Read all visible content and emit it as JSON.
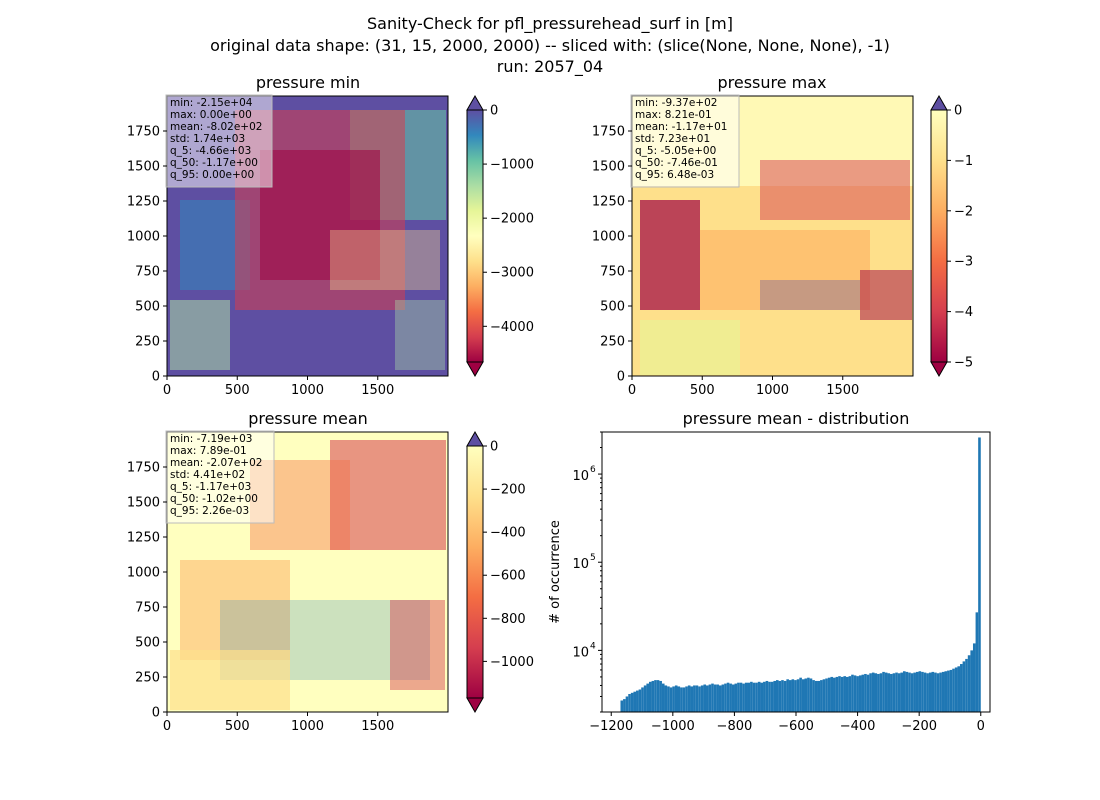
{
  "figure": {
    "title_lines": [
      "Sanity-Check for pfl_pressurehead_surf in [m]",
      "original data shape: (31, 15, 2000, 2000) -- sliced with: (slice(None, None, None), -1)",
      "run: 2057_04"
    ]
  },
  "chart_data": [
    {
      "type": "heatmap",
      "title": "pressure min",
      "colormap": "Spectral",
      "extend_top_color": "#5e4fa2",
      "extend_bottom_color": "#9e0142",
      "xlim": [
        0,
        2000
      ],
      "ylim": [
        0,
        2000
      ],
      "xticks": [
        0,
        500,
        1000,
        1500
      ],
      "yticks": [
        0,
        250,
        500,
        750,
        1000,
        1250,
        1500,
        1750
      ],
      "colorbar": {
        "vmin": -4660,
        "vmax": 0,
        "ticks": [
          0,
          -1000,
          -2000,
          -3000,
          -4000
        ]
      },
      "stats": [
        "min: -2.15e+04",
        "max: 0.00e+00",
        "mean: -8.02e+02",
        "std: 1.74e+03",
        "q_5: -4.66e+03",
        "q_50: -1.17e+00",
        "q_95: 0.00e+00"
      ]
    },
    {
      "type": "heatmap",
      "title": "pressure max",
      "colormap": "Spectral",
      "extend_top_color": "#5e4fa2",
      "extend_bottom_color": "#9e0142",
      "xlim": [
        0,
        2000
      ],
      "ylim": [
        0,
        2000
      ],
      "xticks": [
        0,
        500,
        1000,
        1500
      ],
      "yticks": [
        0,
        250,
        500,
        750,
        1000,
        1250,
        1500,
        1750
      ],
      "colorbar": {
        "vmin": -5,
        "vmax": 0,
        "ticks": [
          0,
          -1,
          -2,
          -3,
          -4,
          -5
        ]
      },
      "stats": [
        "min: -9.37e+02",
        "max: 8.21e-01",
        "mean: -1.17e+01",
        "std: 7.23e+01",
        "q_5: -5.05e+00",
        "q_50: -7.46e-01",
        "q_95: 6.48e-03"
      ]
    },
    {
      "type": "heatmap",
      "title": "pressure mean",
      "colormap": "Spectral",
      "extend_top_color": "#5e4fa2",
      "extend_bottom_color": "#9e0142",
      "xlim": [
        0,
        2000
      ],
      "ylim": [
        0,
        2000
      ],
      "xticks": [
        0,
        500,
        1000,
        1500
      ],
      "yticks": [
        0,
        250,
        500,
        750,
        1000,
        1250,
        1500,
        1750
      ],
      "colorbar": {
        "vmin": -1170,
        "vmax": 0,
        "ticks": [
          0,
          -200,
          -400,
          -600,
          -800,
          -1000
        ]
      },
      "stats": [
        "min: -7.19e+03",
        "max: 7.89e-01",
        "mean: -2.07e+02",
        "std: 4.41e+02",
        "q_5: -1.17e+03",
        "q_50: -1.02e+00",
        "q_95: 2.26e-03"
      ]
    },
    {
      "type": "bar",
      "title": "pressure mean - distribution",
      "ylabel": "# of occurrence",
      "xlabel": "",
      "yscale": "log",
      "color": "#1f77b4",
      "xlim": [
        -1230,
        30
      ],
      "ylim": [
        2000,
        3000000
      ],
      "xticks": [
        -1200,
        -1000,
        -800,
        -600,
        -400,
        -200,
        0
      ],
      "xtick_labels": [
        "−1200",
        "−1000",
        "−800",
        "−600",
        "−400",
        "−200",
        "0"
      ],
      "yticks": [
        10000,
        100000,
        1000000
      ],
      "ytick_labels": [
        "10",
        "10",
        "10"
      ],
      "ytick_exponents": [
        "4",
        "5",
        "6"
      ],
      "bin_edges": [
        -1170,
        0
      ],
      "values": [
        2700,
        2800,
        3000,
        3200,
        3300,
        3400,
        3500,
        3600,
        3800,
        4000,
        4200,
        4400,
        4500,
        4600,
        4600,
        4500,
        4200,
        4000,
        3900,
        3800,
        3900,
        4000,
        3900,
        3800,
        3800,
        3900,
        4000,
        3900,
        4000,
        4000,
        3900,
        4000,
        4100,
        4000,
        4100,
        4200,
        4100,
        4100,
        4000,
        4100,
        4200,
        4300,
        4200,
        4100,
        4200,
        4300,
        4300,
        4200,
        4300,
        4300,
        4400,
        4300,
        4300,
        4400,
        4300,
        4400,
        4500,
        4400,
        4400,
        4500,
        4600,
        4500,
        4600,
        4500,
        4700,
        4600,
        4700,
        4600,
        4700,
        4900,
        4700,
        4800,
        4900,
        4800,
        4600,
        4500,
        4500,
        4600,
        4700,
        4800,
        4900,
        5000,
        4900,
        5000,
        5100,
        5000,
        5100,
        5000,
        5100,
        5300,
        5200,
        5100,
        5200,
        5300,
        5400,
        5300,
        5500,
        5600,
        5500,
        5400,
        5500,
        5700,
        5600,
        5500,
        5400,
        5500,
        5600,
        5500,
        5600,
        5800,
        5700,
        5600,
        5500,
        5600,
        5700,
        5800,
        5700,
        5600,
        5500,
        5600,
        5700,
        5600,
        5500,
        5600,
        5700,
        5800,
        5900,
        6000,
        6200,
        6400,
        6600,
        7000,
        7500,
        8000,
        8800,
        10000,
        12000,
        27000,
        2600000
      ]
    }
  ]
}
